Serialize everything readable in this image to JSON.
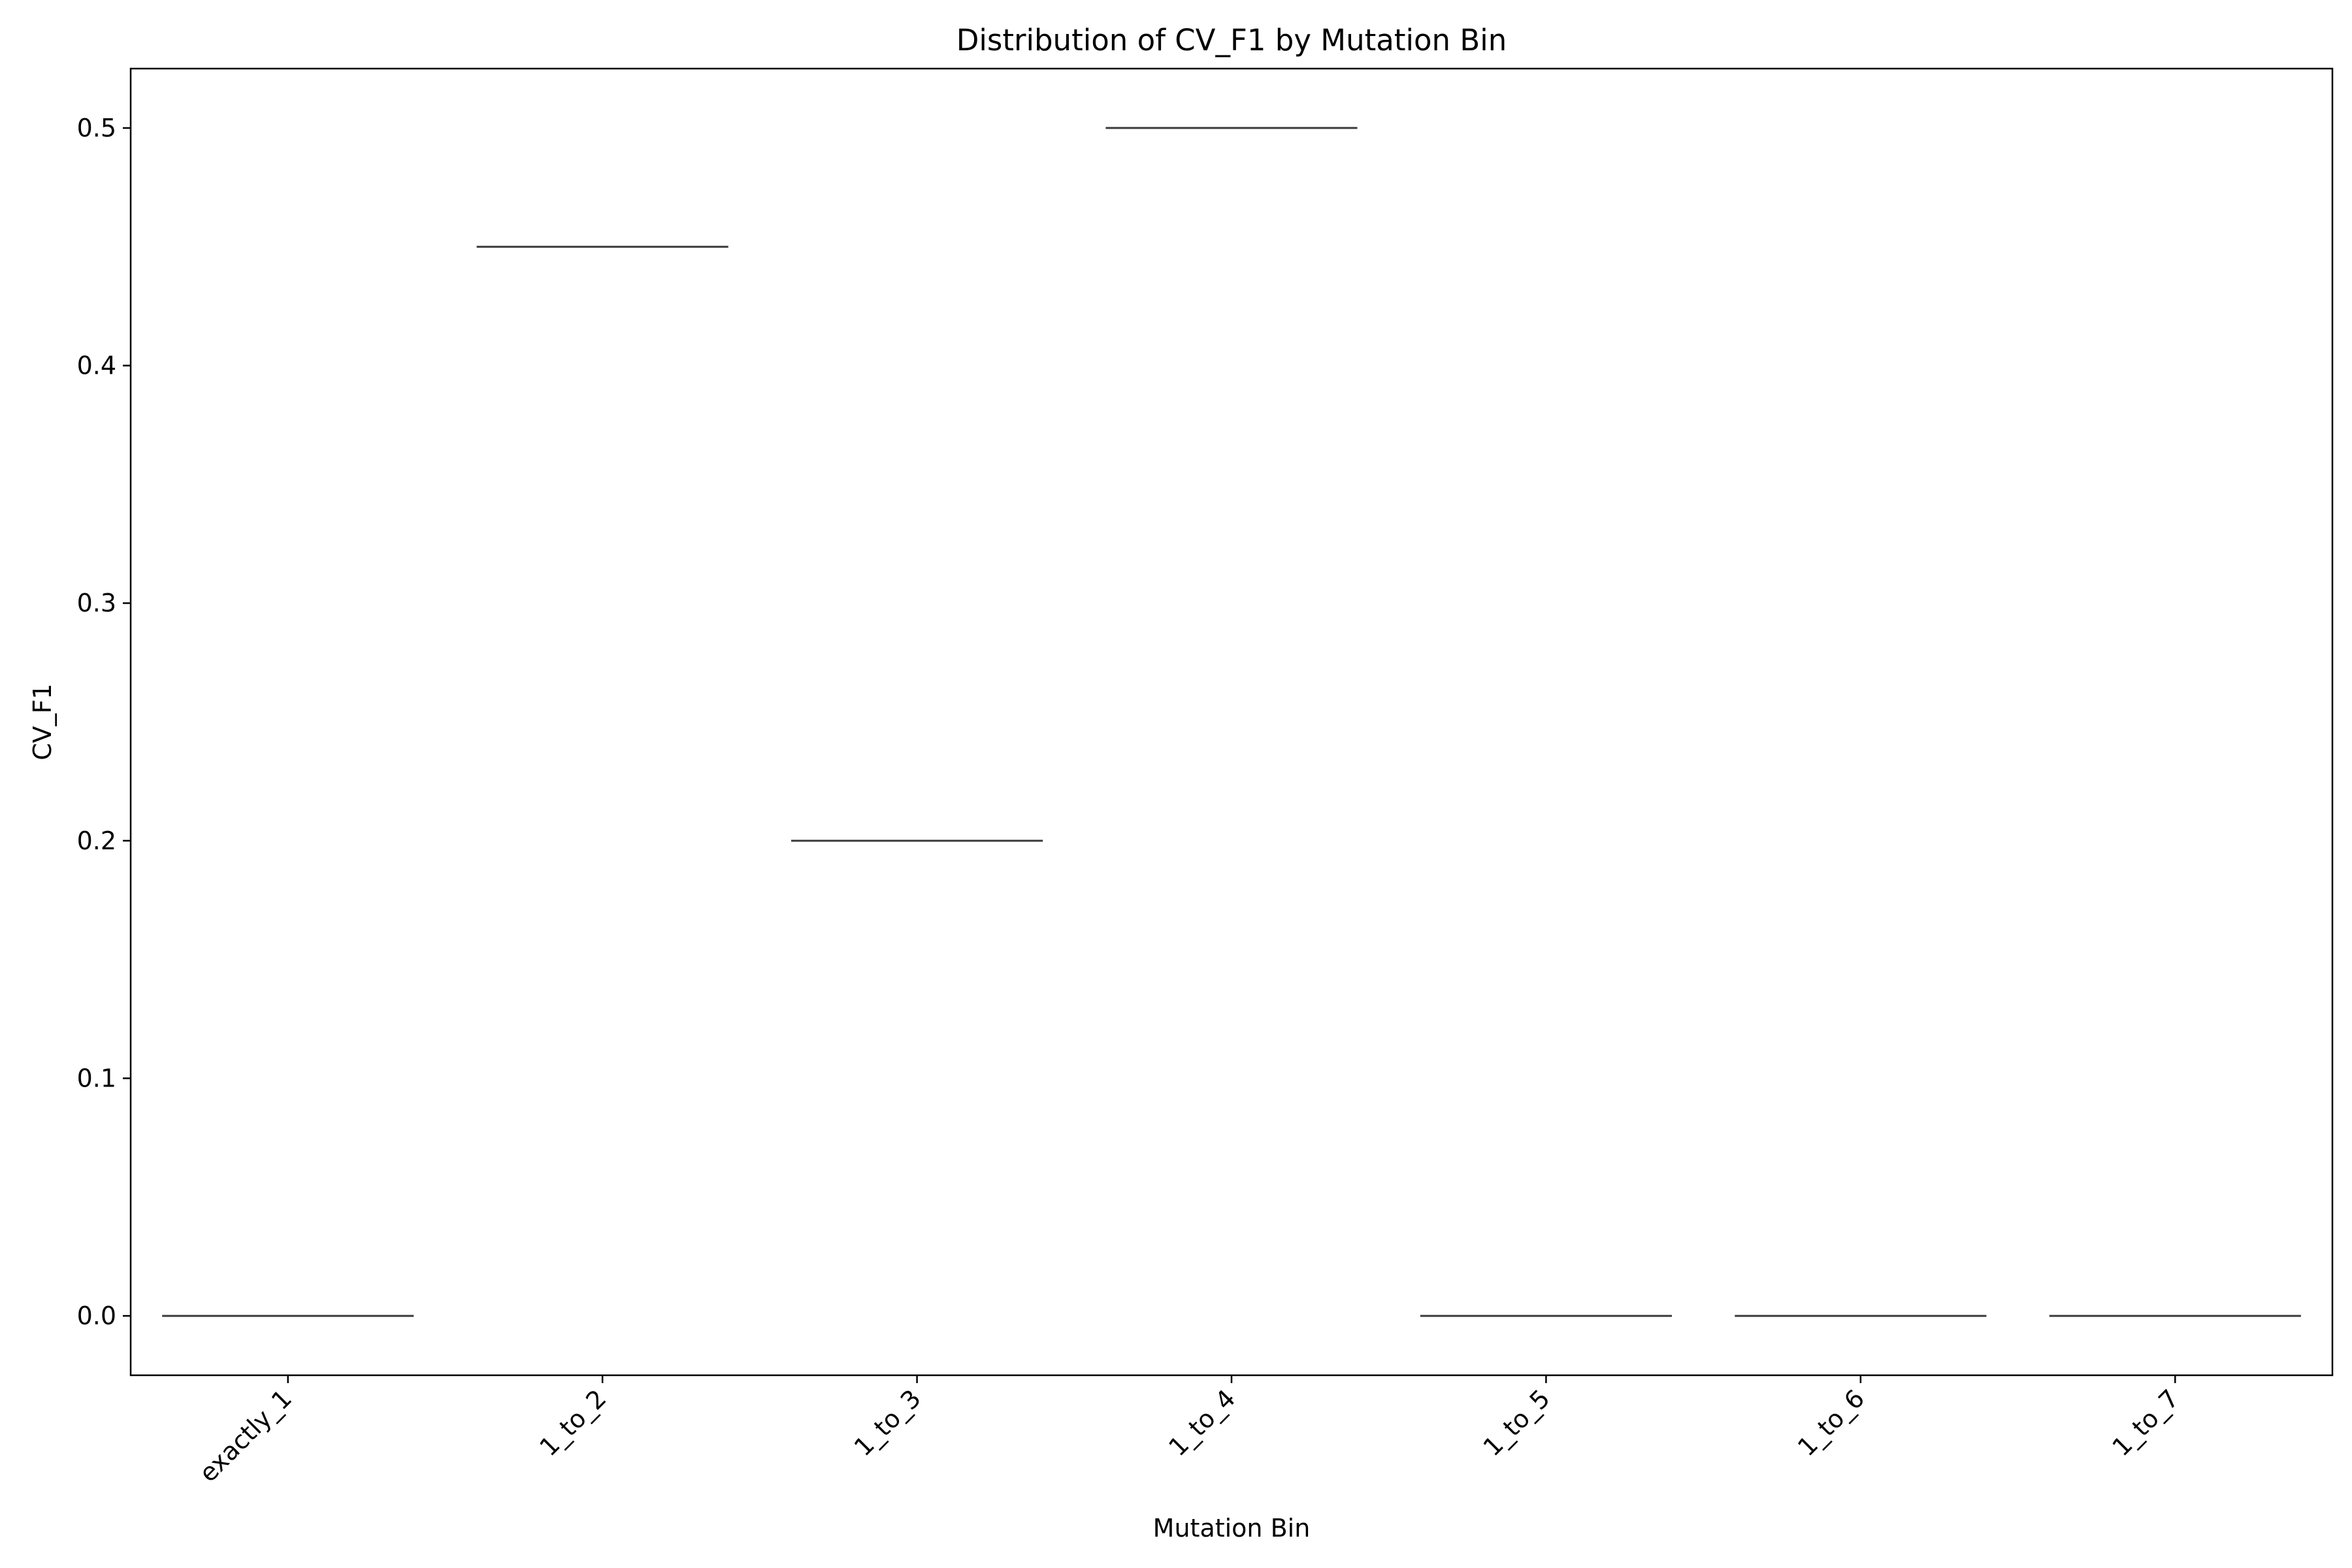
{
  "chart_data": {
    "type": "box",
    "title": "Distribution of CV_F1 by Mutation Bin",
    "xlabel": "Mutation Bin",
    "ylabel": "CV_F1",
    "categories": [
      "exactly_1",
      "1_to_2",
      "1_to_3",
      "1_to_4",
      "1_to_5",
      "1_to_6",
      "1_to_7"
    ],
    "values": [
      0.0,
      0.45,
      0.2,
      0.5,
      0.0,
      0.0,
      0.0
    ],
    "ylim": [
      -0.025,
      0.525
    ],
    "yticks": [
      0.0,
      0.1,
      0.2,
      0.3,
      0.4,
      0.5
    ],
    "ytick_labels": [
      "0.0",
      "0.1",
      "0.2",
      "0.3",
      "0.4",
      "0.5"
    ],
    "grid": false,
    "x_tick_rotation_deg": 45,
    "colors": {
      "box_line": "#3a3a3a",
      "axes": "#000000",
      "background": "#ffffff"
    }
  }
}
